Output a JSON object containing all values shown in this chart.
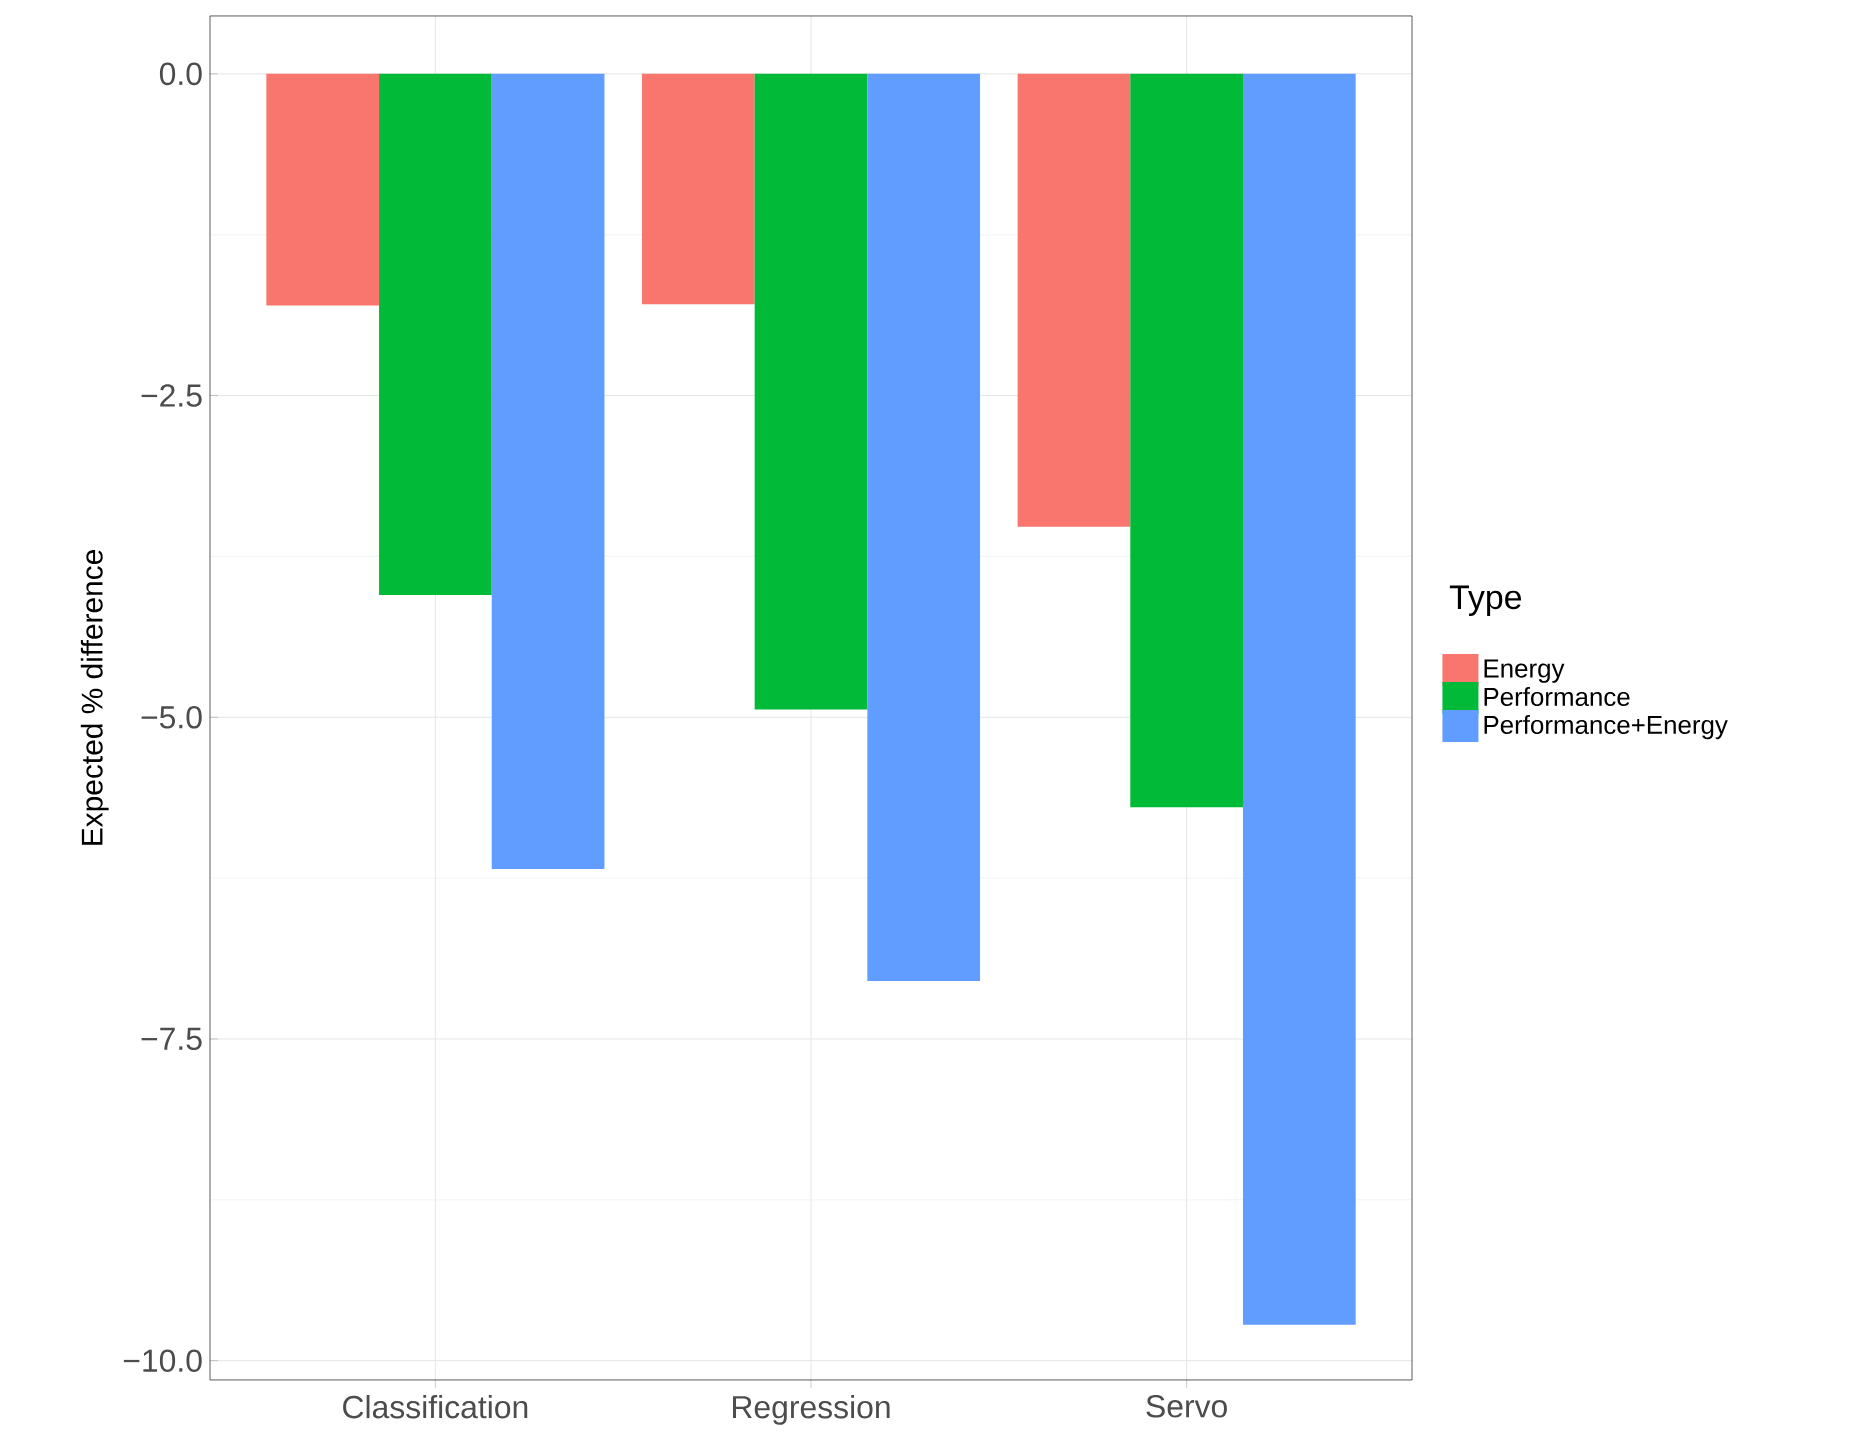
{
  "chart_data": {
    "type": "bar",
    "ylabel": "Expected % difference",
    "legend_title": "Type",
    "categories": [
      "Classification",
      "Regression",
      "Servo"
    ],
    "series": [
      {
        "name": "Energy",
        "color": "#f8766d",
        "values": [
          -1.8,
          -1.79,
          -3.52
        ]
      },
      {
        "name": "Performance",
        "color": "#00ba38",
        "values": [
          -4.05,
          -4.94,
          -5.7
        ]
      },
      {
        "name": "Performance+Energy",
        "color": "#619cff",
        "values": [
          -6.18,
          -7.05,
          -9.72
        ]
      }
    ],
    "ylim": [
      -10.15,
      0.45
    ],
    "yticks": [
      {
        "value": 0,
        "label": "0.0"
      },
      {
        "value": -2.5,
        "label": "−2.5"
      },
      {
        "value": -5,
        "label": "−5.0"
      },
      {
        "value": -7.5,
        "label": "−7.5"
      },
      {
        "value": -10,
        "label": "−10.0"
      }
    ],
    "grid": true,
    "legend": "right"
  }
}
